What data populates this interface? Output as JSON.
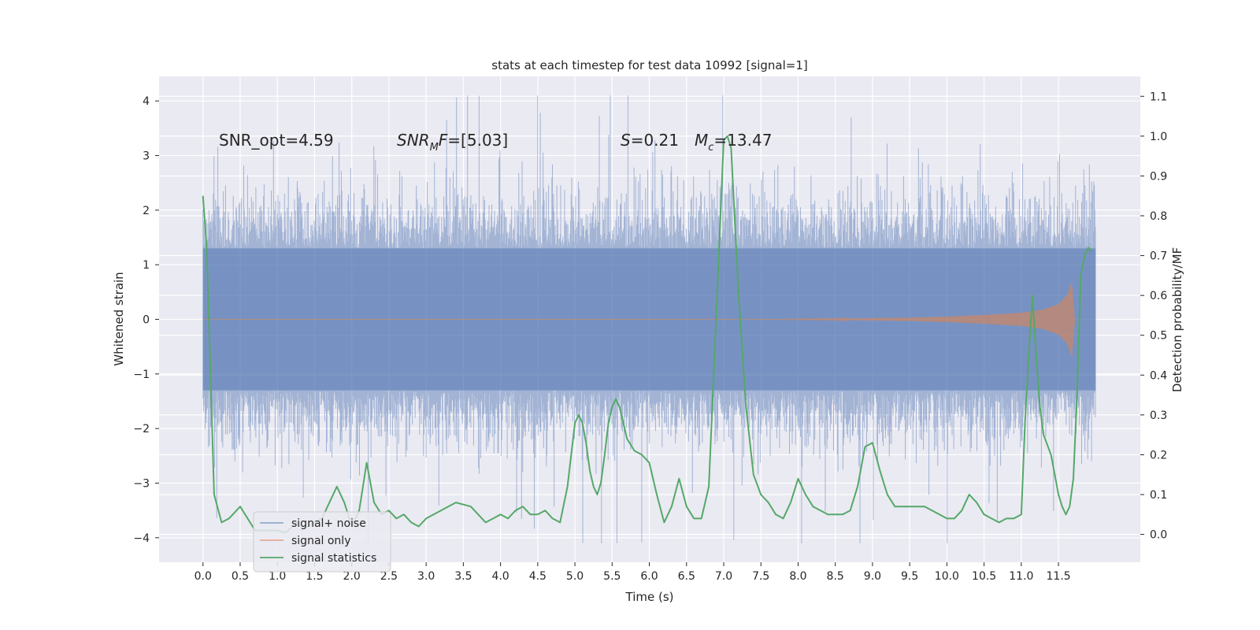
{
  "chart_data": {
    "type": "line",
    "title": "stats at each timestep for test data 10992 [signal=1]",
    "xlabel": "Time (s)",
    "ylabel": "Whitened strain",
    "y2label": "Detection probability/MF",
    "xlim": [
      -0.59,
      12.6
    ],
    "ylim": [
      -4.45,
      4.45
    ],
    "y2lim": [
      -0.07,
      1.15
    ],
    "xticks": [
      0.0,
      0.5,
      1.0,
      1.5,
      2.0,
      2.5,
      3.0,
      3.5,
      4.0,
      4.5,
      5.0,
      5.5,
      6.0,
      6.5,
      7.0,
      7.5,
      8.0,
      8.5,
      9.0,
      9.5,
      10.0,
      10.5,
      11.0,
      11.5
    ],
    "xtick_labels": [
      "0.0",
      "0.5",
      "1.0",
      "1.5",
      "2.0",
      "2.5",
      "3.0",
      "3.5",
      "4.0",
      "4.5",
      "5.0",
      "5.5",
      "6.0",
      "6.5",
      "7.0",
      "7.5",
      "8.0",
      "8.5",
      "9.0",
      "9.5",
      "10.0",
      "10.5",
      "11.0",
      "11.5"
    ],
    "yticks": [
      -4,
      -3,
      -2,
      -1,
      0,
      1,
      2,
      3,
      4
    ],
    "ytick_labels": [
      "−4",
      "−3",
      "−2",
      "−1",
      "0",
      "1",
      "2",
      "3",
      "4"
    ],
    "y2ticks": [
      0.0,
      0.1,
      0.2,
      0.3,
      0.4,
      0.5,
      0.6,
      0.7,
      0.8,
      0.9,
      1.0,
      1.1
    ],
    "y2tick_labels": [
      "0.0",
      "0.1",
      "0.2",
      "0.3",
      "0.4",
      "0.5",
      "0.6",
      "0.7",
      "0.8",
      "0.9",
      "1.0",
      "1.1"
    ],
    "grid": true,
    "legend_position": "lower-left",
    "annotations": {
      "snr_opt": "SNR_opt=4.59",
      "snr_mf_main": "SNR",
      "snr_mf_sub": "M",
      "snr_mf_f": "F",
      "snr_mf_rest": "=[5.03]",
      "s_main": "S",
      "s_rest": "=0.21",
      "mc_main": "M",
      "mc_sub": "c",
      "mc_rest": "=13.47"
    },
    "series": [
      {
        "name": "signal+ noise",
        "color": "#4c72b0",
        "axis": "left",
        "style": "noise",
        "t_range": [
          0.0,
          12.0
        ],
        "core_amplitude": 1.3,
        "approx_max": 4.1,
        "approx_min": -4.05
      },
      {
        "name": "signal only",
        "color": "#dd8452",
        "axis": "left",
        "style": "chirp",
        "t_range": [
          0.0,
          11.72
        ],
        "envelope": {
          "t": [
            7.5,
            8.5,
            9.5,
            10.0,
            10.5,
            11.0,
            11.3,
            11.5,
            11.62,
            11.68,
            11.72
          ],
          "amp": [
            0.0,
            0.01,
            0.03,
            0.05,
            0.08,
            0.12,
            0.18,
            0.28,
            0.45,
            0.7,
            0.0
          ]
        }
      },
      {
        "name": "signal statistics",
        "color": "#55a868",
        "axis": "right",
        "t": [
          0.0,
          0.05,
          0.15,
          0.25,
          0.35,
          0.5,
          0.6,
          0.7,
          0.8,
          0.9,
          1.0,
          1.1,
          1.15,
          1.25,
          1.3,
          1.4,
          1.5,
          1.6,
          1.7,
          1.8,
          1.9,
          2.0,
          2.1,
          2.2,
          2.3,
          2.4,
          2.5,
          2.6,
          2.7,
          2.8,
          2.9,
          3.0,
          3.2,
          3.4,
          3.6,
          3.8,
          3.9,
          4.0,
          4.1,
          4.2,
          4.3,
          4.4,
          4.5,
          4.6,
          4.7,
          4.8,
          4.9,
          5.0,
          5.05,
          5.1,
          5.15,
          5.2,
          5.25,
          5.3,
          5.35,
          5.4,
          5.45,
          5.5,
          5.55,
          5.6,
          5.65,
          5.7,
          5.8,
          5.9,
          6.0,
          6.1,
          6.2,
          6.3,
          6.4,
          6.5,
          6.6,
          6.7,
          6.8,
          6.9,
          7.0,
          7.05,
          7.1,
          7.2,
          7.3,
          7.4,
          7.5,
          7.6,
          7.7,
          7.8,
          7.9,
          8.0,
          8.1,
          8.2,
          8.3,
          8.4,
          8.5,
          8.6,
          8.7,
          8.8,
          8.9,
          9.0,
          9.1,
          9.2,
          9.3,
          9.4,
          9.5,
          9.6,
          9.7,
          9.8,
          9.9,
          10.0,
          10.1,
          10.2,
          10.3,
          10.4,
          10.5,
          10.6,
          10.7,
          10.8,
          10.9,
          11.0,
          11.05,
          11.1,
          11.15,
          11.2,
          11.25,
          11.3,
          11.4,
          11.45,
          11.5,
          11.55,
          11.6,
          11.65,
          11.7,
          11.75,
          11.8,
          11.85,
          11.9,
          11.95
        ],
        "values": [
          0.85,
          0.72,
          0.1,
          0.03,
          0.04,
          0.07,
          0.04,
          0.01,
          0.01,
          0.01,
          0.01,
          0.005,
          0.01,
          0.03,
          0.02,
          0.02,
          0.03,
          0.04,
          0.08,
          0.12,
          0.08,
          0.02,
          0.06,
          0.18,
          0.08,
          0.05,
          0.06,
          0.04,
          0.05,
          0.03,
          0.02,
          0.04,
          0.06,
          0.08,
          0.07,
          0.03,
          0.04,
          0.05,
          0.04,
          0.06,
          0.07,
          0.05,
          0.05,
          0.06,
          0.04,
          0.03,
          0.12,
          0.28,
          0.3,
          0.28,
          0.23,
          0.16,
          0.12,
          0.1,
          0.13,
          0.2,
          0.28,
          0.32,
          0.34,
          0.32,
          0.28,
          0.24,
          0.21,
          0.2,
          0.18,
          0.1,
          0.03,
          0.07,
          0.14,
          0.07,
          0.04,
          0.04,
          0.12,
          0.55,
          0.99,
          1.0,
          0.97,
          0.6,
          0.32,
          0.15,
          0.1,
          0.08,
          0.05,
          0.04,
          0.08,
          0.14,
          0.1,
          0.07,
          0.06,
          0.05,
          0.05,
          0.05,
          0.06,
          0.12,
          0.22,
          0.23,
          0.16,
          0.1,
          0.07,
          0.07,
          0.07,
          0.07,
          0.07,
          0.06,
          0.05,
          0.04,
          0.04,
          0.06,
          0.1,
          0.08,
          0.05,
          0.04,
          0.03,
          0.04,
          0.04,
          0.05,
          0.28,
          0.45,
          0.6,
          0.45,
          0.32,
          0.25,
          0.2,
          0.15,
          0.1,
          0.07,
          0.05,
          0.07,
          0.14,
          0.35,
          0.65,
          0.7,
          0.72,
          0.71
        ]
      }
    ]
  }
}
